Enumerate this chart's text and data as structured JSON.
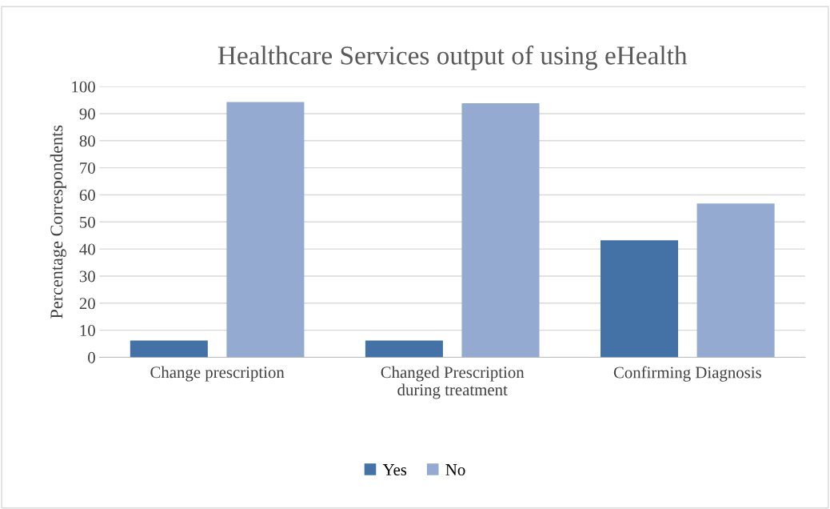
{
  "chart_data": {
    "type": "bar",
    "title": "Healthcare Services output of using eHealth",
    "ylabel": "Percentage Correspondents",
    "categories": [
      "Change prescription",
      "Changed Prescription\nduring treatment",
      "Confirming Diagnosis"
    ],
    "series": [
      {
        "name": "Yes",
        "color": "#4472a6",
        "values": [
          6.2,
          6.2,
          43.2
        ]
      },
      {
        "name": "No",
        "color": "#95aad1",
        "values": [
          94.3,
          93.8,
          56.8
        ]
      }
    ],
    "ylim": [
      0,
      100
    ],
    "yticks": [
      0,
      10,
      20,
      30,
      40,
      50,
      60,
      70,
      80,
      90,
      100
    ],
    "grid": "y",
    "legend": "bottom"
  }
}
